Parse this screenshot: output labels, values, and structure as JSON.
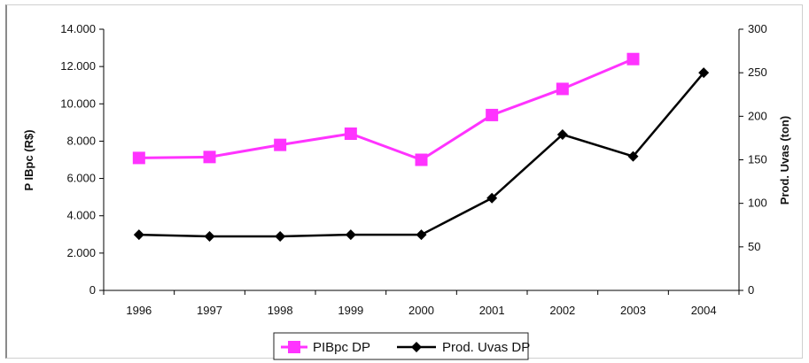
{
  "chart_data": {
    "type": "line",
    "categories": [
      "1996",
      "1997",
      "1998",
      "1999",
      "2000",
      "2001",
      "2002",
      "2003",
      "2004"
    ],
    "y_left": {
      "label": "P IBpc (R$)",
      "range": [
        0,
        14000
      ],
      "ticks": [
        0,
        2000,
        4000,
        6000,
        8000,
        10000,
        12000,
        14000
      ],
      "tick_labels": [
        "0",
        "2.000",
        "4.000",
        "6.000",
        "8.000",
        "10.000",
        "12.000",
        "14.000"
      ]
    },
    "y_right": {
      "label": "Prod. Uvas (ton)",
      "range": [
        0,
        300
      ],
      "ticks": [
        0,
        50,
        100,
        150,
        200,
        250,
        300
      ],
      "tick_labels": [
        "0",
        "50",
        "100",
        "150",
        "200",
        "250",
        "300"
      ]
    },
    "series": [
      {
        "name": "PIBpc DP",
        "axis": "left",
        "color": "#ff33ff",
        "marker": "square",
        "values": [
          7100,
          7150,
          7800,
          8400,
          7000,
          9400,
          10800,
          12400,
          null
        ]
      },
      {
        "name": "Prod. Uvas DP",
        "axis": "right",
        "color": "#000000",
        "marker": "diamond",
        "values": [
          64,
          62,
          62,
          64,
          64,
          106,
          179,
          154,
          250
        ]
      }
    ],
    "legend_position": "bottom-center",
    "grid": false
  }
}
